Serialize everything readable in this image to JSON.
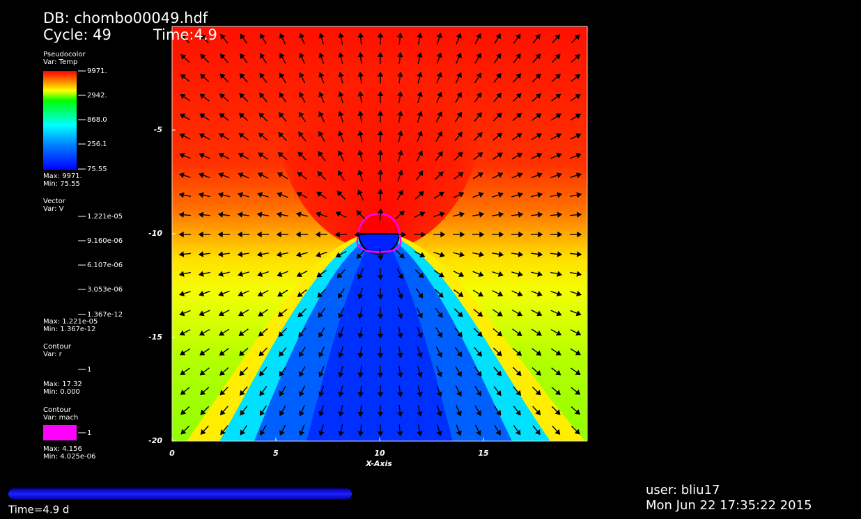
{
  "header": {
    "database": "DB: chombo00049.hdf",
    "cycle": "Cycle: 49",
    "time": "Time:4.9"
  },
  "legends": {
    "pseudocolor": {
      "title": "Pseudocolor",
      "var": "Var: Temp",
      "labels": [
        "9971.",
        "2942.",
        "868.0",
        "256.1",
        "75.55"
      ],
      "max": "Max: 9971.",
      "min": "Min: 75.55"
    },
    "vector": {
      "title": "Vector",
      "var": "Var: V",
      "labels": [
        "1.221e-05",
        "9.160e-06",
        "6.107e-06",
        "3.053e-06",
        "1.367e-12"
      ],
      "max": "Max:  1.221e-05",
      "min": "Min:  1.367e-12"
    },
    "contour_r": {
      "title": "Contour",
      "var": "Var: r",
      "labels": [
        "1"
      ],
      "max": "Max:  17.32",
      "min": "Min:  0.000"
    },
    "contour_mach": {
      "title": "Contour",
      "var": "Var: mach",
      "labels": [
        "1"
      ],
      "max": "Max:  4.156",
      "min": "Min:  4.025e-06"
    }
  },
  "plot": {
    "x_label": "X-Axis",
    "xlim": [
      0,
      20
    ],
    "ylim": [
      -20,
      0
    ],
    "xticks": [
      0,
      5,
      10,
      15
    ],
    "yticks": [
      -5,
      -10,
      -15,
      -20
    ]
  },
  "footer": {
    "time": "Time=4.9 d",
    "user": "user: bliu17",
    "date": "Mon Jun 22 17:35:22 2015"
  }
}
